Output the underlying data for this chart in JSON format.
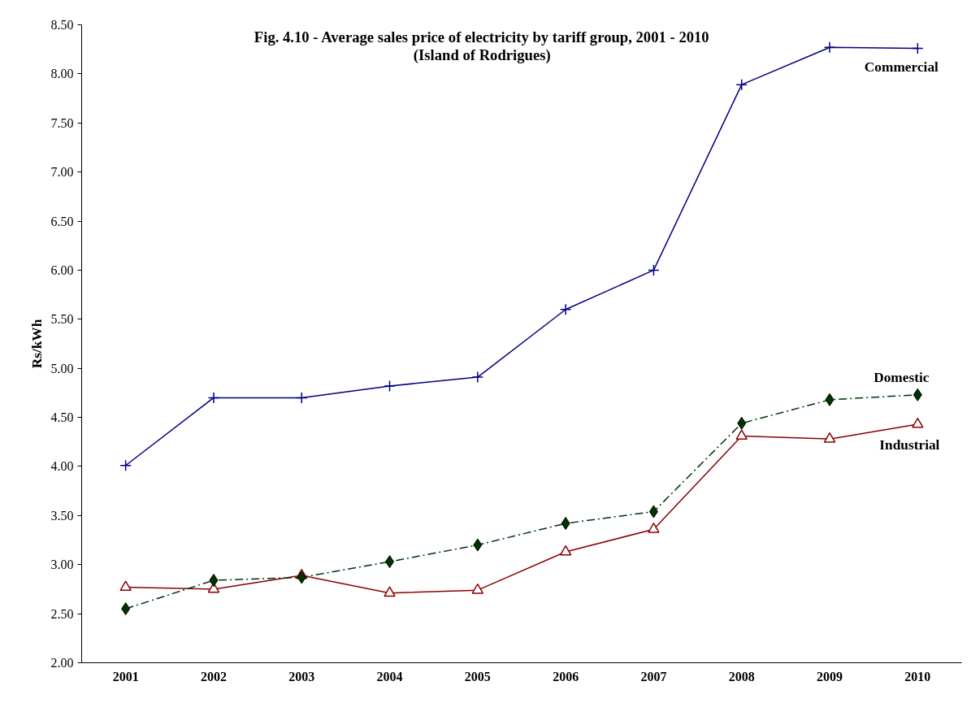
{
  "chart_data": {
    "type": "line",
    "title": "Fig. 4.10 - Average sales price of electricity by tariff group, 2001 - 2010",
    "subtitle": "(Island of Rodrigues)",
    "ylabel": "Rs/kWh",
    "categories": [
      "2001",
      "2002",
      "2003",
      "2004",
      "2005",
      "2006",
      "2007",
      "2008",
      "2009",
      "2010"
    ],
    "ylim": [
      2,
      8.5
    ],
    "yticks": [
      {
        "value": 2,
        "label": "2.00"
      },
      {
        "value": 2.5,
        "label": "2.50"
      },
      {
        "value": 3,
        "label": "3.00"
      },
      {
        "value": 3.5,
        "label": "3.50"
      },
      {
        "value": 4,
        "label": "4.00"
      },
      {
        "value": 4.5,
        "label": "4.50"
      },
      {
        "value": 5,
        "label": "5.00"
      },
      {
        "value": 5.5,
        "label": "5.50"
      },
      {
        "value": 6,
        "label": "6.00"
      },
      {
        "value": 6.5,
        "label": "6.50"
      },
      {
        "value": 7,
        "label": "7.00"
      },
      {
        "value": 7.5,
        "label": "7.50"
      },
      {
        "value": 8,
        "label": "8.00"
      },
      {
        "value": 8.5,
        "label": "8.50"
      }
    ],
    "grid": false,
    "series": [
      {
        "name": "Commercial",
        "color": "#000080",
        "marker": "cross",
        "line_style": "solid",
        "values": [
          4.01,
          4.7,
          4.7,
          4.82,
          4.91,
          5.6,
          6.0,
          7.89,
          8.27,
          8.26
        ]
      },
      {
        "name": "Domestic",
        "color": "#003300",
        "marker": "diamond",
        "line_style": "dashed",
        "values": [
          2.55,
          2.84,
          2.87,
          3.03,
          3.2,
          3.42,
          3.54,
          4.44,
          4.68,
          4.73
        ]
      },
      {
        "name": "Industrial",
        "color": "#8b0000",
        "marker": "triangle",
        "line_style": "solid",
        "values": [
          2.77,
          2.75,
          2.89,
          2.71,
          2.74,
          3.13,
          3.36,
          4.31,
          4.28,
          4.43
        ]
      }
    ]
  }
}
